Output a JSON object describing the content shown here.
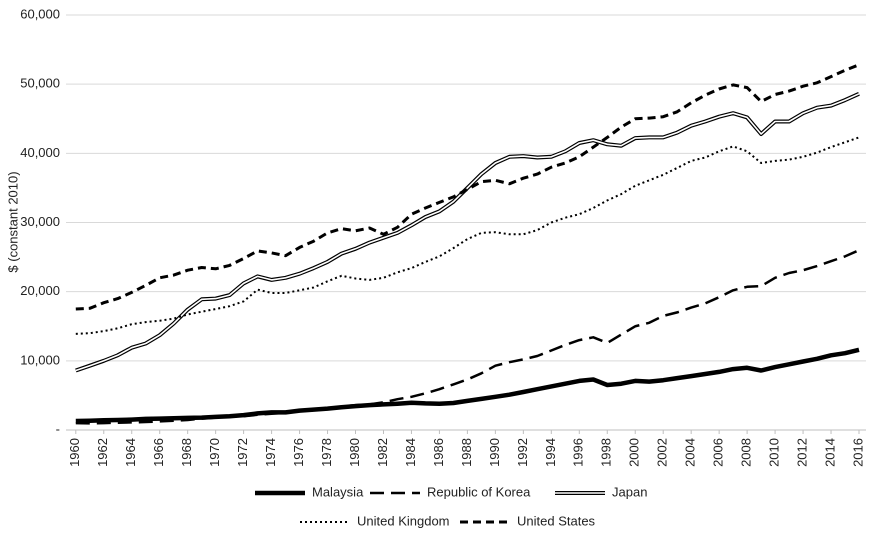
{
  "chart_data": {
    "type": "line",
    "y_label": "$ (constant 2010)",
    "x": [
      1960,
      1961,
      1962,
      1963,
      1964,
      1965,
      1966,
      1967,
      1968,
      1969,
      1970,
      1971,
      1972,
      1973,
      1974,
      1975,
      1976,
      1977,
      1978,
      1979,
      1980,
      1981,
      1982,
      1983,
      1984,
      1985,
      1986,
      1987,
      1988,
      1989,
      1990,
      1991,
      1992,
      1993,
      1994,
      1995,
      1996,
      1997,
      1998,
      1999,
      2000,
      2001,
      2002,
      2003,
      2004,
      2005,
      2006,
      2007,
      2008,
      2009,
      2010,
      2011,
      2012,
      2013,
      2014,
      2015,
      2016
    ],
    "xlim": [
      1959.3,
      2016.5
    ],
    "xticks": [
      1960,
      1962,
      1964,
      1966,
      1968,
      1970,
      1972,
      1974,
      1976,
      1978,
      1980,
      1982,
      1984,
      1986,
      1988,
      1990,
      1992,
      1994,
      1996,
      1998,
      2000,
      2002,
      2004,
      2006,
      2008,
      2010,
      2012,
      2014,
      2016
    ],
    "ylim": [
      0,
      60000
    ],
    "yticks": [
      {
        "value": 0,
        "label": "-"
      },
      {
        "value": 10000,
        "label": "10,000"
      },
      {
        "value": 20000,
        "label": "20,000"
      },
      {
        "value": 30000,
        "label": "30,000"
      },
      {
        "value": 40000,
        "label": "40,000"
      },
      {
        "value": 50000,
        "label": "50,000"
      },
      {
        "value": 60000,
        "label": "60,000"
      }
    ],
    "grid": true,
    "legend": "bottom",
    "series": [
      {
        "name": "Malaysia",
        "color": "#000000",
        "style": "thick",
        "values": [
          1300,
          1350,
          1400,
          1450,
          1500,
          1600,
          1650,
          1700,
          1750,
          1800,
          1900,
          2000,
          2150,
          2400,
          2550,
          2550,
          2800,
          2950,
          3100,
          3300,
          3450,
          3600,
          3700,
          3800,
          3950,
          3850,
          3800,
          3900,
          4200,
          4500,
          4800,
          5100,
          5500,
          5900,
          6300,
          6700,
          7100,
          7300,
          6500,
          6700,
          7100,
          7000,
          7200,
          7500,
          7800,
          8100,
          8400,
          8800,
          9000,
          8600,
          9100,
          9500,
          9900,
          10300,
          10800,
          11100,
          11600
        ]
      },
      {
        "name": "Republic of Korea",
        "color": "#000000",
        "style": "dashed",
        "values": [
          1000,
          950,
          1000,
          1050,
          1100,
          1150,
          1250,
          1350,
          1450,
          1650,
          1800,
          1900,
          2000,
          2200,
          2350,
          2500,
          2700,
          2900,
          3100,
          3400,
          3600,
          3700,
          4000,
          4450,
          4800,
          5300,
          5900,
          6600,
          7300,
          8200,
          9300,
          9800,
          10200,
          10700,
          11500,
          12300,
          13000,
          13400,
          12600,
          13800,
          15000,
          15500,
          16500,
          17000,
          17700,
          18300,
          19200,
          20200,
          20700,
          20800,
          22000,
          22700,
          23100,
          23700,
          24400,
          25100,
          26000
        ]
      },
      {
        "name": "Japan",
        "color": "#000000",
        "style": "double",
        "values": [
          8600,
          9300,
          10000,
          10800,
          11900,
          12500,
          13700,
          15400,
          17400,
          18900,
          19000,
          19500,
          21200,
          22200,
          21700,
          22000,
          22600,
          23400,
          24300,
          25500,
          26200,
          27100,
          27800,
          28500,
          29600,
          30800,
          31600,
          33000,
          35000,
          37000,
          38600,
          39500,
          39600,
          39400,
          39500,
          40300,
          41500,
          41900,
          41300,
          41100,
          42200,
          42300,
          42300,
          43000,
          44000,
          44600,
          45300,
          45800,
          45200,
          42800,
          44600,
          44600,
          45800,
          46600,
          46900,
          47700,
          48600
        ]
      },
      {
        "name": "United Kingdom",
        "color": "#000000",
        "style": "dotted",
        "values": [
          13900,
          14000,
          14300,
          14700,
          15300,
          15600,
          15800,
          16100,
          16700,
          17100,
          17500,
          17900,
          18600,
          20300,
          19800,
          19800,
          20200,
          20600,
          21500,
          22300,
          21900,
          21700,
          22000,
          22800,
          23400,
          24300,
          25100,
          26300,
          27600,
          28500,
          28600,
          28300,
          28300,
          28900,
          30000,
          30700,
          31200,
          32100,
          33200,
          34100,
          35300,
          36100,
          36900,
          37900,
          38900,
          39400,
          40300,
          41000,
          40300,
          38600,
          38900,
          39100,
          39500,
          40100,
          40900,
          41600,
          42300
        ]
      },
      {
        "name": "United States",
        "color": "#000000",
        "style": "shortdash",
        "values": [
          17500,
          17600,
          18400,
          19000,
          19900,
          20900,
          22000,
          22400,
          23100,
          23500,
          23300,
          23800,
          24800,
          25900,
          25600,
          25200,
          26400,
          27300,
          28500,
          29100,
          28800,
          29200,
          28300,
          29300,
          31200,
          32100,
          32900,
          33700,
          34800,
          35900,
          36100,
          35600,
          36400,
          37000,
          38000,
          38600,
          39500,
          40900,
          42300,
          43800,
          45000,
          45100,
          45300,
          46000,
          47300,
          48400,
          49300,
          49900,
          49500,
          47500,
          48500,
          49000,
          49700,
          50200,
          51100,
          52000,
          52800
        ]
      }
    ]
  }
}
